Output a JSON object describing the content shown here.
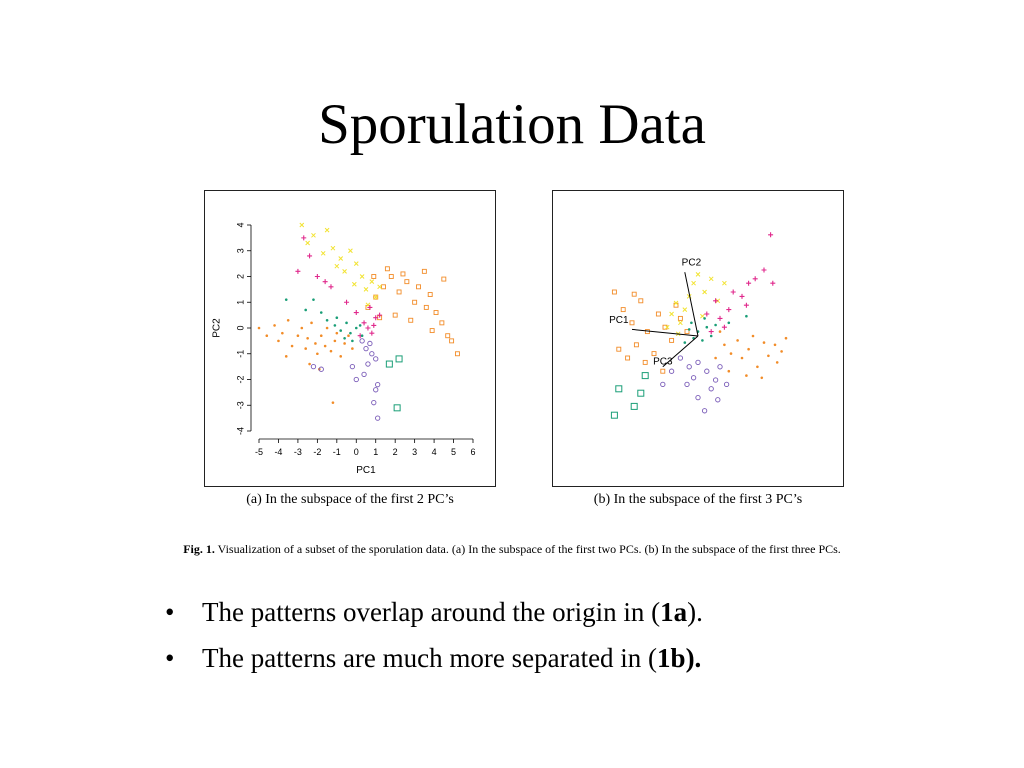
{
  "slide": {
    "title": "Sporulation Data"
  },
  "figure": {
    "caption_label": "Fig. 1.",
    "caption_text": "Visualization of a subset of the sporulation data. (a) In the subspace of the first two PCs. (b) In the subspace of the first three PCs.",
    "subcaption_a": "(a) In the subspace of the first 2 PC’s",
    "subcaption_b": "(b) In the subspace of the first 3 PC’s"
  },
  "bullets": [
    {
      "glyph": "•",
      "pre": "The patterns overlap around the origin in (",
      "bold": "1a",
      "post": ")."
    },
    {
      "glyph": "•",
      "pre": "The patterns are much more separated in (",
      "bold": "1b).",
      "post": ""
    }
  ],
  "colors": {
    "orange": "#f28c28",
    "yellow": "#f2e330",
    "magenta": "#e0288c",
    "teal": "#1a9e77",
    "purple": "#7a5cb8",
    "axes": "#000000"
  },
  "chart_data": [
    {
      "type": "scatter",
      "title": "",
      "xlabel": "PC1",
      "ylabel": "PC2",
      "xlim": [
        -5,
        6
      ],
      "ylim": [
        -4,
        4
      ],
      "xticks": [
        -5,
        -4,
        -3,
        -2,
        -1,
        0,
        1,
        2,
        3,
        4,
        5,
        6
      ],
      "yticks": [
        -4,
        -3,
        -2,
        -1,
        0,
        1,
        2,
        3,
        4
      ],
      "series": [
        {
          "marker": "dot",
          "color": "#f28c28",
          "points": [
            [
              -5,
              0
            ],
            [
              -4.6,
              -0.3
            ],
            [
              -4.2,
              0.1
            ],
            [
              -4,
              -0.5
            ],
            [
              -3.8,
              -0.2
            ],
            [
              -3.5,
              0.3
            ],
            [
              -3.3,
              -0.7
            ],
            [
              -3,
              -0.3
            ],
            [
              -2.8,
              0
            ],
            [
              -2.6,
              -0.8
            ],
            [
              -2.5,
              -0.4
            ],
            [
              -2.3,
              0.2
            ],
            [
              -2.1,
              -0.6
            ],
            [
              -2,
              -1
            ],
            [
              -1.8,
              -0.3
            ],
            [
              -1.6,
              -0.7
            ],
            [
              -1.5,
              0
            ],
            [
              -1.3,
              -0.9
            ],
            [
              -1.1,
              -0.5
            ],
            [
              -1,
              -0.2
            ],
            [
              -0.8,
              -1.1
            ],
            [
              -0.6,
              -0.6
            ],
            [
              -0.4,
              -0.3
            ],
            [
              -0.2,
              -0.8
            ],
            [
              -2.4,
              -1.4
            ],
            [
              -1.2,
              -2.9
            ],
            [
              -3.6,
              -1.1
            ],
            [
              -1.9,
              -1.6
            ]
          ]
        },
        {
          "marker": "square",
          "color": "#f28c28",
          "points": [
            [
              0.6,
              0.8
            ],
            [
              1,
              1.2
            ],
            [
              1.4,
              1.6
            ],
            [
              1.8,
              2
            ],
            [
              2.2,
              1.4
            ],
            [
              2.6,
              1.8
            ],
            [
              3,
              1
            ],
            [
              3.2,
              1.6
            ],
            [
              3.6,
              0.8
            ],
            [
              3.8,
              1.3
            ],
            [
              4.1,
              0.6
            ],
            [
              4.4,
              0.2
            ],
            [
              4.7,
              -0.3
            ],
            [
              4.9,
              -0.5
            ],
            [
              5.2,
              -1
            ],
            [
              3.5,
              2.2
            ],
            [
              2.4,
              2.1
            ],
            [
              1.6,
              2.3
            ],
            [
              0.9,
              2
            ],
            [
              2,
              0.5
            ],
            [
              2.8,
              0.3
            ],
            [
              4.5,
              1.9
            ],
            [
              3.9,
              -0.1
            ],
            [
              1.2,
              0.4
            ]
          ]
        },
        {
          "marker": "x",
          "color": "#f2e330",
          "points": [
            [
              -2.8,
              4
            ],
            [
              -2.2,
              3.6
            ],
            [
              -1.5,
              3.8
            ],
            [
              -1.2,
              3.1
            ],
            [
              -0.8,
              2.7
            ],
            [
              -0.6,
              2.2
            ],
            [
              -0.3,
              3
            ],
            [
              0,
              2.5
            ],
            [
              0.3,
              2
            ],
            [
              0.5,
              1.5
            ],
            [
              0.8,
              1.8
            ],
            [
              1,
              1.2
            ],
            [
              -1,
              2.4
            ],
            [
              -1.7,
              2.9
            ],
            [
              -0.1,
              1.7
            ],
            [
              0.6,
              0.9
            ],
            [
              1.2,
              1.6
            ],
            [
              -2.5,
              3.3
            ]
          ]
        },
        {
          "marker": "plus",
          "color": "#e0288c",
          "points": [
            [
              -2.7,
              3.5
            ],
            [
              -3,
              2.2
            ],
            [
              -2,
              2
            ],
            [
              -1.6,
              1.8
            ],
            [
              -1.3,
              1.6
            ],
            [
              -0.5,
              1
            ],
            [
              0,
              0.6
            ],
            [
              0.4,
              0.2
            ],
            [
              0.6,
              0
            ],
            [
              0.8,
              -0.2
            ],
            [
              1,
              0.4
            ],
            [
              1.2,
              0.5
            ],
            [
              0.7,
              0.8
            ],
            [
              0.2,
              -0.3
            ],
            [
              0.9,
              0.1
            ],
            [
              -2.4,
              2.8
            ]
          ]
        },
        {
          "marker": "dot",
          "color": "#1a9e77",
          "points": [
            [
              -3.6,
              1.1
            ],
            [
              -2.2,
              1.1
            ],
            [
              -1.8,
              0.6
            ],
            [
              -1.5,
              0.3
            ],
            [
              -1.1,
              0.1
            ],
            [
              -0.8,
              -0.1
            ],
            [
              -0.5,
              0.2
            ],
            [
              -0.3,
              -0.2
            ],
            [
              0,
              0
            ],
            [
              0.2,
              0.1
            ],
            [
              -0.6,
              -0.4
            ],
            [
              -1,
              0.4
            ],
            [
              -2.6,
              0.7
            ],
            [
              -0.2,
              -0.5
            ],
            [
              0.3,
              -0.3
            ]
          ]
        },
        {
          "marker": "square-large",
          "color": "#1a9e77",
          "points": [
            [
              2.2,
              -1.2
            ],
            [
              2.1,
              -3.1
            ],
            [
              1.7,
              -1.4
            ]
          ]
        },
        {
          "marker": "circle",
          "color": "#7a5cb8",
          "points": [
            [
              0.3,
              -0.5
            ],
            [
              0.5,
              -0.8
            ],
            [
              0.8,
              -1
            ],
            [
              1,
              -1.2
            ],
            [
              0.6,
              -1.4
            ],
            [
              1.1,
              -2.2
            ],
            [
              1,
              -2.4
            ],
            [
              0.9,
              -2.9
            ],
            [
              1.1,
              -3.5
            ],
            [
              0.4,
              -1.8
            ],
            [
              -0.2,
              -1.5
            ],
            [
              -1.8,
              -1.6
            ],
            [
              -2.2,
              -1.5
            ],
            [
              0,
              -2
            ],
            [
              0.7,
              -0.6
            ]
          ]
        }
      ]
    },
    {
      "type": "scatter",
      "title": "",
      "xlabel": "",
      "ylabel": "",
      "axis_labels_3d": [
        "PC1",
        "PC2",
        "PC3"
      ],
      "series": [
        {
          "marker": "dot",
          "color": "#f28c28",
          "points": [
            [
              1.2,
              -0.4
            ],
            [
              1.5,
              -0.8
            ],
            [
              1.8,
              -0.2
            ],
            [
              2,
              -1
            ],
            [
              2.3,
              -0.6
            ],
            [
              2.5,
              0
            ],
            [
              2.7,
              -1.4
            ],
            [
              3,
              -0.3
            ],
            [
              3.2,
              -0.9
            ],
            [
              3.5,
              -0.4
            ],
            [
              3.8,
              -0.7
            ],
            [
              4,
              -0.1
            ],
            [
              1.4,
              -1.6
            ],
            [
              2.2,
              -1.8
            ],
            [
              2.9,
              -1.9
            ],
            [
              0.8,
              -1
            ],
            [
              1,
              0.2
            ],
            [
              3.6,
              -1.2
            ]
          ]
        },
        {
          "marker": "square",
          "color": "#f28c28",
          "points": [
            [
              -3.8,
              2
            ],
            [
              -3.4,
              1.2
            ],
            [
              -3,
              0.6
            ],
            [
              -2.8,
              -0.4
            ],
            [
              -2.6,
              1.6
            ],
            [
              -2.3,
              0.2
            ],
            [
              -2,
              -0.8
            ],
            [
              -1.8,
              1
            ],
            [
              -1.5,
              0.4
            ],
            [
              -1.2,
              -0.2
            ],
            [
              -1,
              1.4
            ],
            [
              -0.8,
              0.8
            ],
            [
              -3.6,
              -0.6
            ],
            [
              -2.4,
              -1.2
            ],
            [
              -1.6,
              -1.6
            ],
            [
              -3.2,
              -1
            ],
            [
              -0.5,
              0.2
            ],
            [
              -2.9,
              1.9
            ]
          ]
        },
        {
          "marker": "x",
          "color": "#f2e330",
          "points": [
            [
              -1.2,
              1
            ],
            [
              -1,
              1.5
            ],
            [
              -0.8,
              0.6
            ],
            [
              -0.6,
              1.2
            ],
            [
              -0.4,
              1.8
            ],
            [
              -0.2,
              2.4
            ],
            [
              0,
              2.8
            ],
            [
              0.3,
              2
            ],
            [
              0.6,
              2.6
            ],
            [
              0.9,
              1.6
            ],
            [
              -1.4,
              0.4
            ],
            [
              -0.9,
              0.1
            ],
            [
              0.2,
              0.9
            ],
            [
              1.2,
              2.4
            ]
          ]
        },
        {
          "marker": "plus",
          "color": "#e0288c",
          "points": [
            [
              0.4,
              1
            ],
            [
              0.8,
              1.6
            ],
            [
              1,
              0.8
            ],
            [
              1.4,
              1.2
            ],
            [
              1.6,
              2
            ],
            [
              2,
              1.8
            ],
            [
              2.3,
              2.4
            ],
            [
              2.6,
              2.6
            ],
            [
              3,
              3
            ],
            [
              3.4,
              2.4
            ],
            [
              3.3,
              4.6
            ],
            [
              2.2,
              1.4
            ],
            [
              1.2,
              0.4
            ],
            [
              0.6,
              0.2
            ]
          ]
        },
        {
          "marker": "dot",
          "color": "#1a9e77",
          "points": [
            [
              -0.4,
              0.3
            ],
            [
              -0.2,
              -0.1
            ],
            [
              0,
              0.2
            ],
            [
              0.2,
              -0.2
            ],
            [
              0.4,
              0.4
            ],
            [
              0.6,
              0
            ],
            [
              -0.6,
              -0.3
            ],
            [
              -0.3,
              0.6
            ],
            [
              0.3,
              0.8
            ],
            [
              0.8,
              0.5
            ],
            [
              1.4,
              0.6
            ],
            [
              2.2,
              0.9
            ]
          ]
        },
        {
          "marker": "square-large",
          "color": "#1a9e77",
          "points": [
            [
              -2.4,
              -1.8
            ],
            [
              -2.6,
              -2.6
            ],
            [
              -3.6,
              -2.4
            ],
            [
              -3.8,
              -3.6
            ],
            [
              -2.9,
              -3.2
            ]
          ]
        },
        {
          "marker": "circle",
          "color": "#7a5cb8",
          "points": [
            [
              -0.8,
              -1
            ],
            [
              -0.4,
              -1.4
            ],
            [
              0,
              -1.2
            ],
            [
              0.4,
              -1.6
            ],
            [
              0.8,
              -2
            ],
            [
              1,
              -1.4
            ],
            [
              0.6,
              -2.4
            ],
            [
              0,
              -2.8
            ],
            [
              -0.5,
              -2.2
            ],
            [
              -1.2,
              -1.6
            ],
            [
              -1.6,
              -2.2
            ],
            [
              0.3,
              -3.4
            ],
            [
              0.9,
              -2.9
            ],
            [
              -0.2,
              -1.9
            ],
            [
              1.3,
              -2.2
            ]
          ]
        }
      ]
    }
  ]
}
